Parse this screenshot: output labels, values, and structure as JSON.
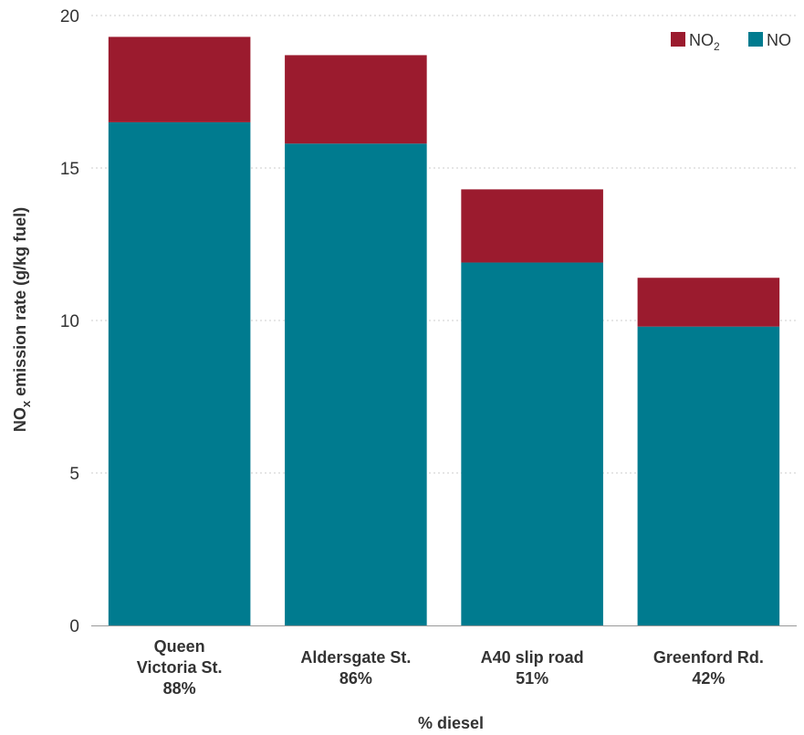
{
  "chart_data": {
    "type": "bar",
    "stacked": true,
    "categories": [
      [
        "Queen",
        "Victoria St.",
        "88%"
      ],
      [
        "Aldersgate St.",
        "86%"
      ],
      [
        "A40 slip road",
        "51%"
      ],
      [
        "Greenford Rd.",
        "42%"
      ]
    ],
    "series": [
      {
        "name": "NO",
        "color": "#007B8F",
        "values": [
          16.5,
          15.8,
          11.9,
          9.8
        ]
      },
      {
        "name": "NO2",
        "color": "#9B1B2E",
        "values": [
          2.8,
          2.9,
          2.4,
          1.6
        ]
      }
    ],
    "legend": {
      "position": "top-right",
      "items": [
        {
          "label": "NO",
          "sub": "2",
          "color": "#9B1B2E"
        },
        {
          "label": "NO",
          "sub": "",
          "color": "#007B8F"
        }
      ]
    },
    "xlabel": "% diesel",
    "ylabel": {
      "pre": "NO",
      "sub": "x",
      "post": " emission rate (g/kg fuel)"
    },
    "ylim": [
      0,
      20
    ],
    "yticks": [
      0,
      5,
      10,
      15,
      20
    ],
    "grid": true
  }
}
